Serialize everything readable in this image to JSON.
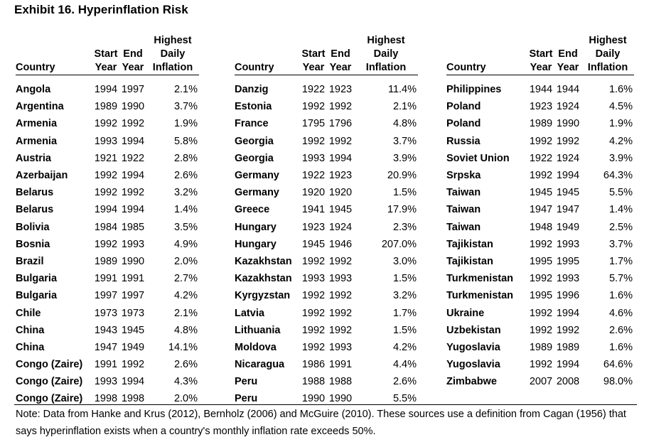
{
  "title": "Exhibit 16. Hyperinflation Risk",
  "headers": {
    "country": "Country",
    "start_1": "Start",
    "start_2": "Year",
    "end_1": "End",
    "end_2": "Year",
    "infl_1": "Highest",
    "infl_2": "Daily",
    "infl_3": "Inflation"
  },
  "panels": [
    {
      "rows": [
        {
          "country": "Angola",
          "start": "1994",
          "end": "1997",
          "inflation": "2.1%"
        },
        {
          "country": "Argentina",
          "start": "1989",
          "end": "1990",
          "inflation": "3.7%"
        },
        {
          "country": "Armenia",
          "start": "1992",
          "end": "1992",
          "inflation": "1.9%"
        },
        {
          "country": "Armenia",
          "start": "1993",
          "end": "1994",
          "inflation": "5.8%"
        },
        {
          "country": "Austria",
          "start": "1921",
          "end": "1922",
          "inflation": "2.8%"
        },
        {
          "country": "Azerbaijan",
          "start": "1992",
          "end": "1994",
          "inflation": "2.6%"
        },
        {
          "country": "Belarus",
          "start": "1992",
          "end": "1992",
          "inflation": "3.2%"
        },
        {
          "country": "Belarus",
          "start": "1994",
          "end": "1994",
          "inflation": "1.4%"
        },
        {
          "country": "Bolivia",
          "start": "1984",
          "end": "1985",
          "inflation": "3.5%"
        },
        {
          "country": "Bosnia",
          "start": "1992",
          "end": "1993",
          "inflation": "4.9%"
        },
        {
          "country": "Brazil",
          "start": "1989",
          "end": "1990",
          "inflation": "2.0%"
        },
        {
          "country": "Bulgaria",
          "start": "1991",
          "end": "1991",
          "inflation": "2.7%"
        },
        {
          "country": "Bulgaria",
          "start": "1997",
          "end": "1997",
          "inflation": "4.2%"
        },
        {
          "country": "Chile",
          "start": "1973",
          "end": "1973",
          "inflation": "2.1%"
        },
        {
          "country": "China",
          "start": "1943",
          "end": "1945",
          "inflation": "4.8%"
        },
        {
          "country": "China",
          "start": "1947",
          "end": "1949",
          "inflation": "14.1%"
        },
        {
          "country": "Congo (Zaire)",
          "start": "1991",
          "end": "1992",
          "inflation": "2.6%"
        },
        {
          "country": "Congo (Zaire)",
          "start": "1993",
          "end": "1994",
          "inflation": "4.3%"
        },
        {
          "country": "Congo (Zaire)",
          "start": "1998",
          "end": "1998",
          "inflation": "2.0%"
        }
      ]
    },
    {
      "rows": [
        {
          "country": "Danzig",
          "start": "1922",
          "end": "1923",
          "inflation": "11.4%"
        },
        {
          "country": "Estonia",
          "start": "1992",
          "end": "1992",
          "inflation": "2.1%"
        },
        {
          "country": "France",
          "start": "1795",
          "end": "1796",
          "inflation": "4.8%"
        },
        {
          "country": "Georgia",
          "start": "1992",
          "end": "1992",
          "inflation": "3.7%"
        },
        {
          "country": "Georgia",
          "start": "1993",
          "end": "1994",
          "inflation": "3.9%"
        },
        {
          "country": "Germany",
          "start": "1922",
          "end": "1923",
          "inflation": "20.9%"
        },
        {
          "country": "Germany",
          "start": "1920",
          "end": "1920",
          "inflation": "1.5%"
        },
        {
          "country": "Greece",
          "start": "1941",
          "end": "1945",
          "inflation": "17.9%"
        },
        {
          "country": "Hungary",
          "start": "1923",
          "end": "1924",
          "inflation": "2.3%"
        },
        {
          "country": "Hungary",
          "start": "1945",
          "end": "1946",
          "inflation": "207.0%"
        },
        {
          "country": "Kazakhstan",
          "start": "1992",
          "end": "1992",
          "inflation": "3.0%"
        },
        {
          "country": "Kazakhstan",
          "start": "1993",
          "end": "1993",
          "inflation": "1.5%"
        },
        {
          "country": "Kyrgyzstan",
          "start": "1992",
          "end": "1992",
          "inflation": "3.2%"
        },
        {
          "country": "Latvia",
          "start": "1992",
          "end": "1992",
          "inflation": "1.7%"
        },
        {
          "country": "Lithuania",
          "start": "1992",
          "end": "1992",
          "inflation": "1.5%"
        },
        {
          "country": "Moldova",
          "start": "1992",
          "end": "1993",
          "inflation": "4.2%"
        },
        {
          "country": "Nicaragua",
          "start": "1986",
          "end": "1991",
          "inflation": "4.4%"
        },
        {
          "country": "Peru",
          "start": "1988",
          "end": "1988",
          "inflation": "2.6%"
        },
        {
          "country": "Peru",
          "start": "1990",
          "end": "1990",
          "inflation": "5.5%"
        }
      ]
    },
    {
      "rows": [
        {
          "country": "Philippines",
          "start": "1944",
          "end": "1944",
          "inflation": "1.6%"
        },
        {
          "country": "Poland",
          "start": "1923",
          "end": "1924",
          "inflation": "4.5%"
        },
        {
          "country": "Poland",
          "start": "1989",
          "end": "1990",
          "inflation": "1.9%"
        },
        {
          "country": "Russia",
          "start": "1992",
          "end": "1992",
          "inflation": "4.2%"
        },
        {
          "country": "Soviet Union",
          "start": "1922",
          "end": "1924",
          "inflation": "3.9%"
        },
        {
          "country": "Srpska",
          "start": "1992",
          "end": "1994",
          "inflation": "64.3%"
        },
        {
          "country": "Taiwan",
          "start": "1945",
          "end": "1945",
          "inflation": "5.5%"
        },
        {
          "country": "Taiwan",
          "start": "1947",
          "end": "1947",
          "inflation": "1.4%"
        },
        {
          "country": "Taiwan",
          "start": "1948",
          "end": "1949",
          "inflation": "2.5%"
        },
        {
          "country": "Tajikistan",
          "start": "1992",
          "end": "1993",
          "inflation": "3.7%"
        },
        {
          "country": "Tajikistan",
          "start": "1995",
          "end": "1995",
          "inflation": "1.7%"
        },
        {
          "country": "Turkmenistan",
          "start": "1992",
          "end": "1993",
          "inflation": "5.7%"
        },
        {
          "country": "Turkmenistan",
          "start": "1995",
          "end": "1996",
          "inflation": "1.6%"
        },
        {
          "country": "Ukraine",
          "start": "1992",
          "end": "1994",
          "inflation": "4.6%"
        },
        {
          "country": "Uzbekistan",
          "start": "1992",
          "end": "1992",
          "inflation": "2.6%"
        },
        {
          "country": "Yugoslavia",
          "start": "1989",
          "end": "1989",
          "inflation": "1.6%"
        },
        {
          "country": "Yugoslavia",
          "start": "1992",
          "end": "1994",
          "inflation": "64.6%"
        },
        {
          "country": "Zimbabwe",
          "start": "2007",
          "end": "2008",
          "inflation": "98.0%"
        }
      ]
    }
  ],
  "note": "Note: Data from Hanke and Krus (2012), Bernholz (2006) and McGuire (2010). These sources use a definition from Cagan (1956) that says hyperinflation exists when a country's monthly inflation rate exceeds 50%."
}
